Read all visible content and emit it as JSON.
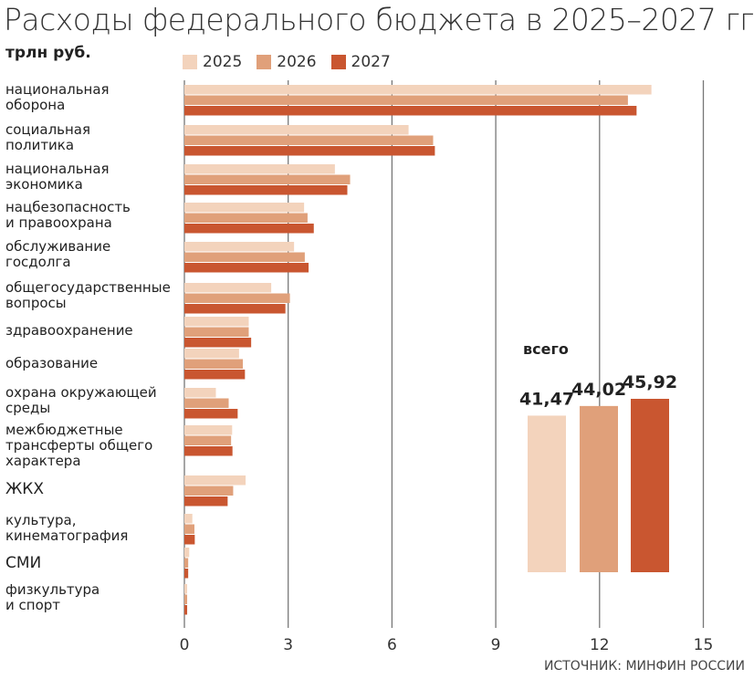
{
  "chart_data": {
    "type": "bar",
    "orientation": "horizontal",
    "title": "Расходы федерального бюджета в 2025–2027 гг.",
    "ylabel": "трлн руб.",
    "xlim": [
      0,
      15
    ],
    "xticks": [
      0,
      3,
      6,
      9,
      12,
      15
    ],
    "grid": true,
    "legend_position": "top",
    "categories": [
      [
        "национальная",
        "оборона"
      ],
      [
        "социальная",
        "политика"
      ],
      [
        "национальная",
        "экономика"
      ],
      [
        "нацбезопасность",
        "и правоохрана"
      ],
      [
        "обслуживание",
        "госдолга"
      ],
      [
        "общегосударственные",
        "вопросы"
      ],
      [
        "здравоохранение"
      ],
      [
        "образование"
      ],
      [
        "охрана окружающей",
        "среды"
      ],
      [
        "межбюджетные",
        "трансферты общего",
        "характера"
      ],
      [
        "ЖКХ"
      ],
      [
        "культура,",
        "кинематография"
      ],
      [
        "СМИ"
      ],
      [
        "физкультура",
        "и спорт"
      ]
    ],
    "series": [
      {
        "name": "2025",
        "color": "#f3d3bc",
        "values": [
          13.5,
          6.48,
          4.35,
          3.46,
          3.17,
          2.51,
          1.86,
          1.58,
          0.91,
          1.38,
          1.77,
          0.23,
          0.14,
          0.08
        ]
      },
      {
        "name": "2026",
        "color": "#e0a07a",
        "values": [
          12.82,
          7.19,
          4.79,
          3.56,
          3.48,
          3.05,
          1.86,
          1.69,
          1.28,
          1.35,
          1.41,
          0.29,
          0.11,
          0.08
        ]
      },
      {
        "name": "2027",
        "color": "#c95630",
        "values": [
          13.07,
          7.24,
          4.71,
          3.74,
          3.59,
          2.92,
          1.93,
          1.75,
          1.54,
          1.39,
          1.25,
          0.3,
          0.11,
          0.08
        ]
      }
    ],
    "totals": {
      "label": "всего",
      "values": [
        41.47,
        44.02,
        45.92
      ],
      "value_labels": [
        "41,47",
        "44,02",
        "45,92"
      ]
    },
    "source": "ИСТОЧНИК: МИНФИН РОССИИ"
  }
}
